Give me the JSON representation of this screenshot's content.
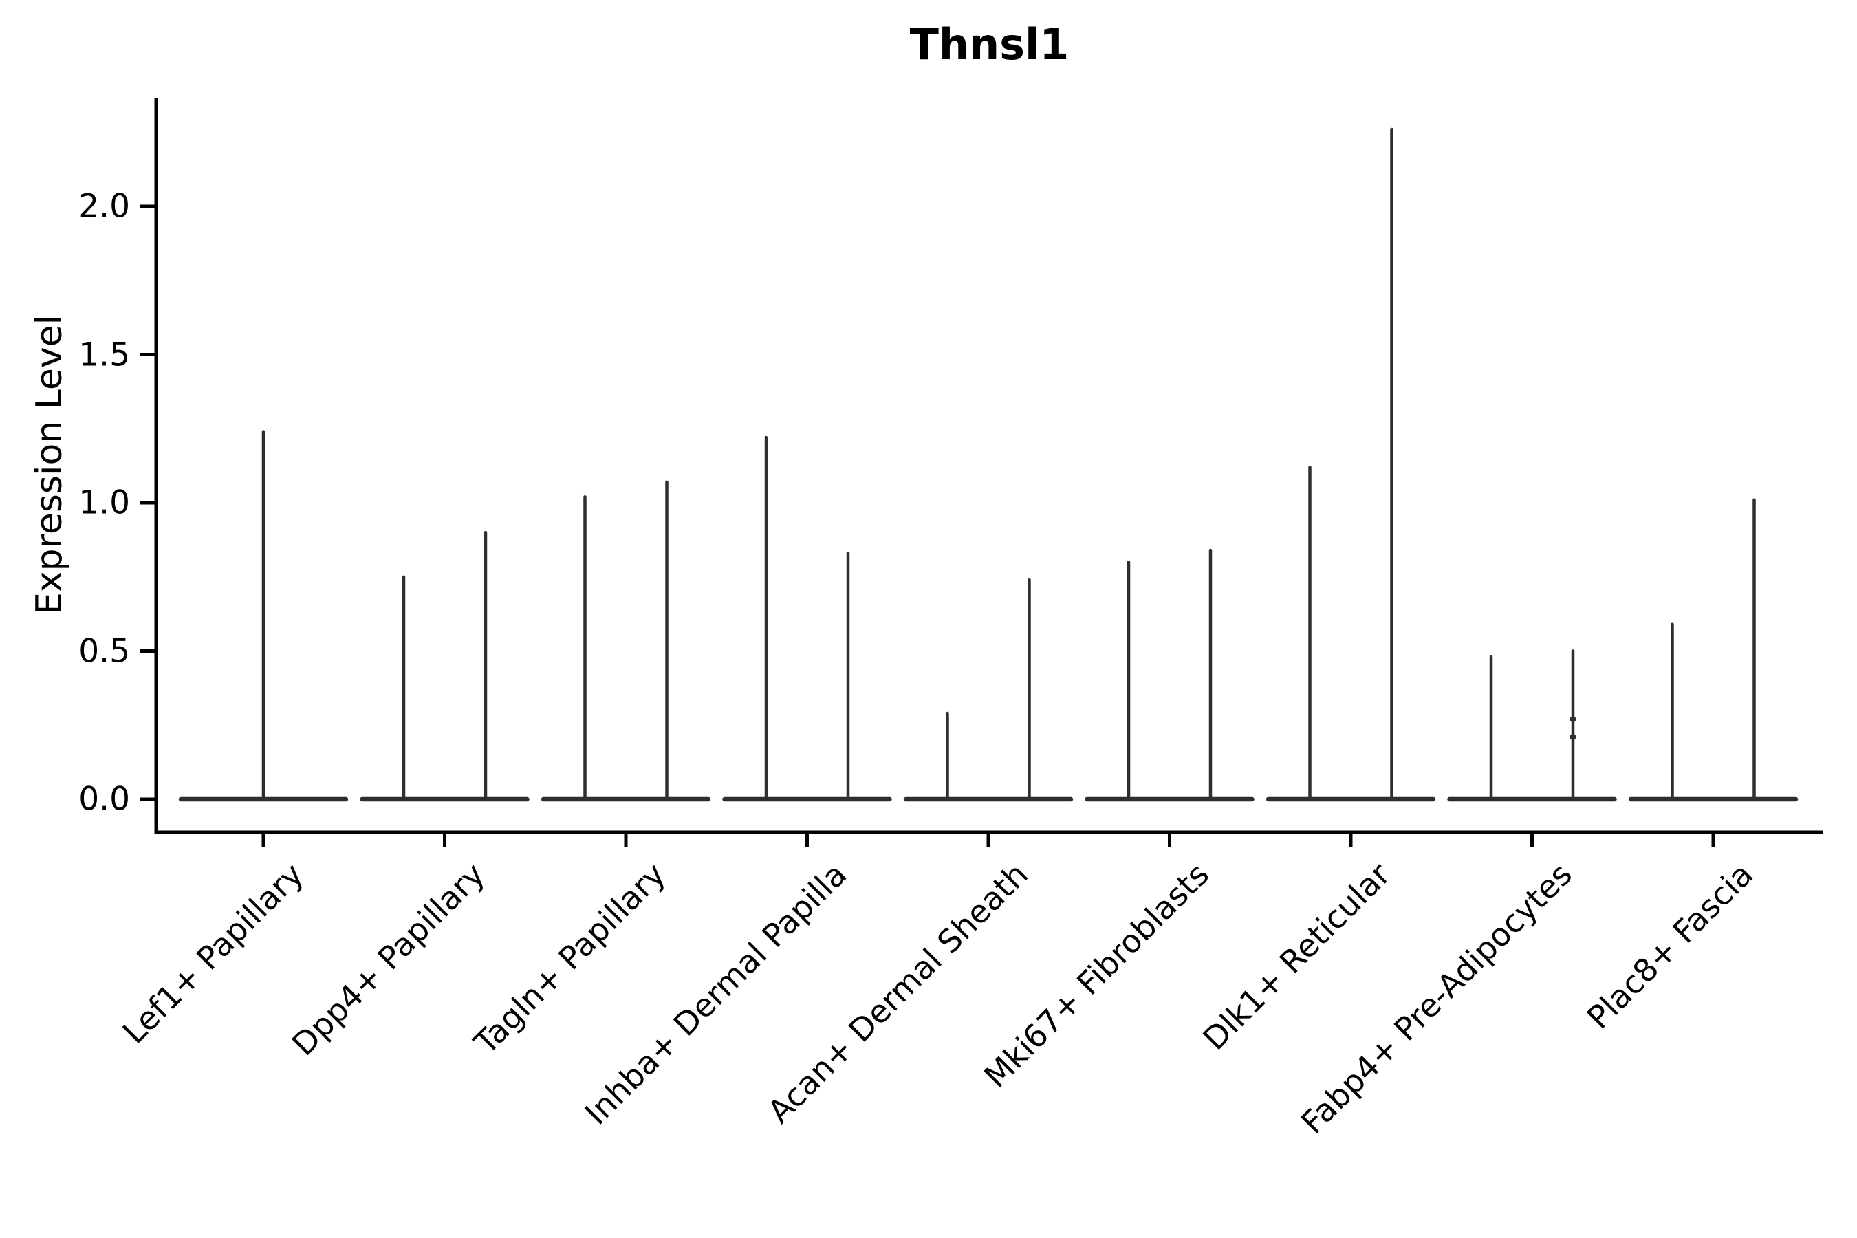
{
  "title": "Thnsl1",
  "style": {
    "violin_color": "#2e2e2e",
    "axis_color": "#000000",
    "background": "#ffffff",
    "text_color": "#000000"
  },
  "chart_data": {
    "type": "violin",
    "title": "Thnsl1",
    "xlabel": "",
    "ylabel": "Expression Level",
    "ylim": [
      -0.11,
      2.37
    ],
    "yticks": [
      0.0,
      0.5,
      1.0,
      1.5,
      2.0
    ],
    "ytick_labels": [
      "0.0",
      "0.5",
      "1.0",
      "1.5",
      "2.0"
    ],
    "grid": false,
    "legend": "none",
    "xtick_rotation": 45,
    "baseline_value": 0.0,
    "categories": [
      "Lef1+ Papillary",
      "Dpp4+ Papillary",
      "Tagln+ Papillary",
      "Inhba+ Dermal Papilla",
      "Acan+ Dermal Sheath",
      "Mki67+ Fibroblasts",
      "Dlk1+ Reticular",
      "Fabp4+ Pre-Adipocytes",
      "Plac8+ Fascia"
    ],
    "violins": [
      {
        "category": "Lef1+ Papillary",
        "spikes": [
          {
            "slot": "center",
            "max": 1.24
          }
        ]
      },
      {
        "category": "Dpp4+ Papillary",
        "spikes": [
          {
            "slot": "left",
            "max": 0.75
          },
          {
            "slot": "right",
            "max": 0.9
          }
        ]
      },
      {
        "category": "Tagln+ Papillary",
        "spikes": [
          {
            "slot": "left",
            "max": 1.02
          },
          {
            "slot": "right",
            "max": 1.07
          }
        ]
      },
      {
        "category": "Inhba+ Dermal Papilla",
        "spikes": [
          {
            "slot": "left",
            "max": 1.22
          },
          {
            "slot": "right",
            "max": 0.83
          }
        ]
      },
      {
        "category": "Acan+ Dermal Sheath",
        "spikes": [
          {
            "slot": "left",
            "max": 0.29
          },
          {
            "slot": "right",
            "max": 0.74
          }
        ]
      },
      {
        "category": "Mki67+ Fibroblasts",
        "spikes": [
          {
            "slot": "left",
            "max": 0.8
          },
          {
            "slot": "right",
            "max": 0.84
          }
        ]
      },
      {
        "category": "Dlk1+ Reticular",
        "spikes": [
          {
            "slot": "left",
            "max": 1.12
          },
          {
            "slot": "right",
            "max": 2.26
          }
        ]
      },
      {
        "category": "Fabp4+ Pre-Adipocytes",
        "spikes": [
          {
            "slot": "left",
            "max": 0.48
          },
          {
            "slot": "right",
            "max": 0.5,
            "dots": [
              0.27,
              0.21
            ]
          }
        ]
      },
      {
        "category": "Plac8+ Fascia",
        "spikes": [
          {
            "slot": "left",
            "max": 0.59
          },
          {
            "slot": "right",
            "max": 1.01
          }
        ]
      }
    ]
  }
}
